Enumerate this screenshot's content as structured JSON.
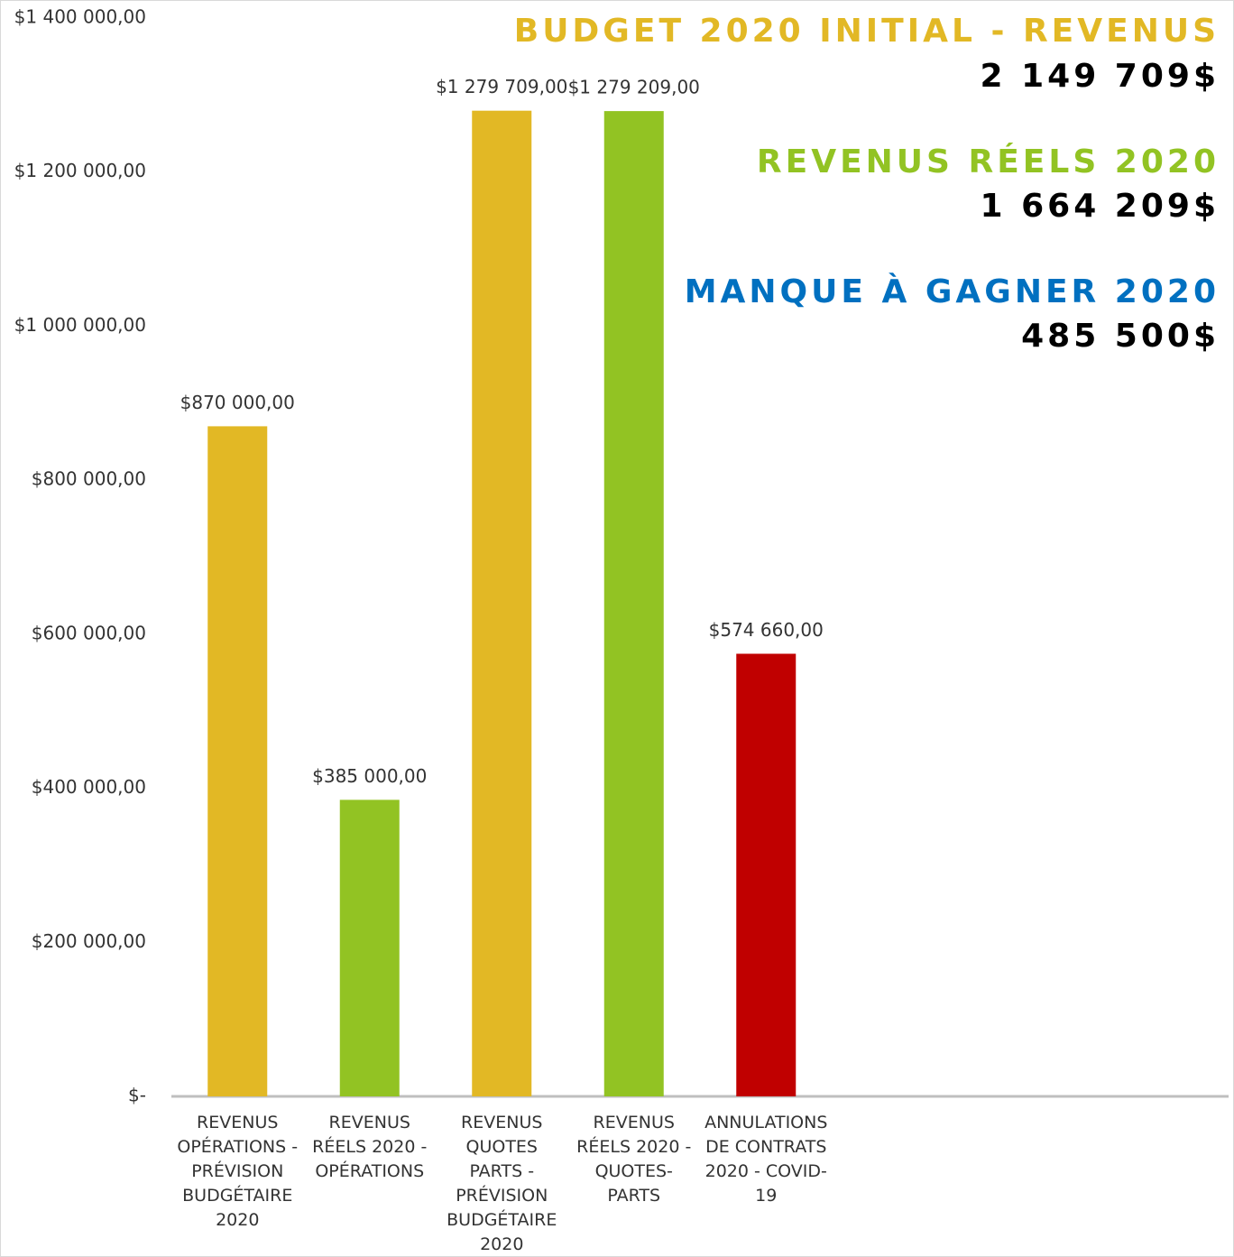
{
  "chart_data": {
    "type": "bar",
    "categories": [
      "REVENUS OPÉRATIONS - PRÉVISION BUDGÉTAIRE 2020",
      "REVENUS RÉELS 2020 - OPÉRATIONS",
      "REVENUS QUOTES PARTS - PRÉVISION BUDGÉTAIRE 2020",
      "REVENUS RÉELS 2020 - QUOTES-PARTS",
      "ANNULATIONS DE CONTRATS 2020 - COVID-19"
    ],
    "values": [
      870000,
      385000,
      1279709,
      1279209,
      574660
    ],
    "value_labels": [
      "$870 000,00",
      "$385 000,00",
      "$1 279 709,00",
      "$1 279 209,00",
      "$574 660,00"
    ],
    "colors": [
      "#e2b825",
      "#92c323",
      "#e2b825",
      "#92c323",
      "#c00000"
    ],
    "ylim": [
      0,
      1400000
    ],
    "yticks": [
      {
        "value": 0,
        "label": "$-"
      },
      {
        "value": 200000,
        "label": "$200 000,00"
      },
      {
        "value": 400000,
        "label": "$400 000,00"
      },
      {
        "value": 600000,
        "label": "$600 000,00"
      },
      {
        "value": 800000,
        "label": "$800 000,00"
      },
      {
        "value": 1000000,
        "label": "$1 000 000,00"
      },
      {
        "value": 1200000,
        "label": "$1 200 000,00"
      },
      {
        "value": 1400000,
        "label": "$1 400 000,00"
      }
    ],
    "grid": false,
    "annotations": [
      {
        "text": "BUDGET 2020 INITIAL - REVENUS",
        "color": "#e2b825"
      },
      {
        "text": "2 149 709$",
        "color": "#000000"
      },
      {
        "text": "REVENUS RÉELS 2020",
        "color": "#92c323"
      },
      {
        "text": "1 664 209$",
        "color": "#000000"
      },
      {
        "text": "MANQUE À GAGNER 2020",
        "color": "#0070c0"
      },
      {
        "text": "485 500$",
        "color": "#000000"
      }
    ]
  }
}
